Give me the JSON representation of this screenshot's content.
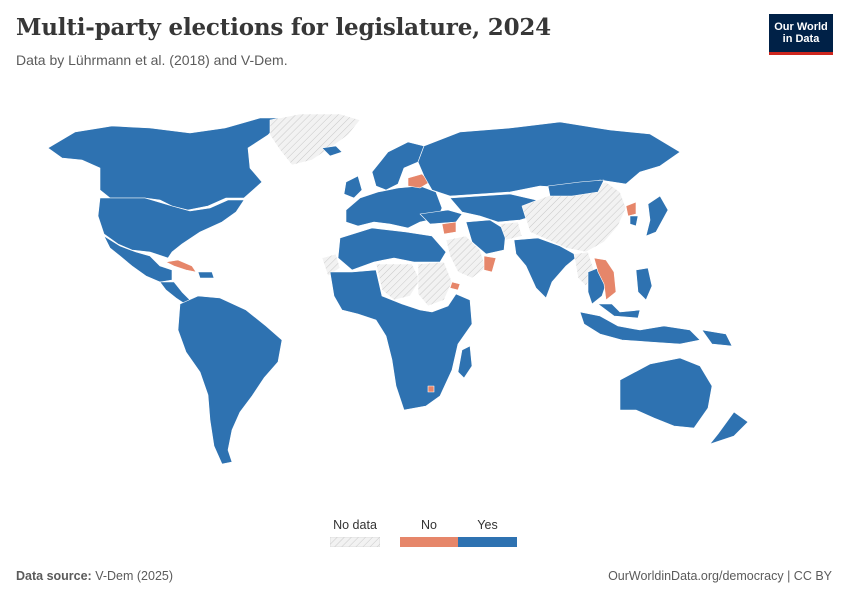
{
  "header": {
    "title": "Multi-party elections for legislature, 2024",
    "subtitle": "Data by Lührmann et al. (2018) and V-Dem."
  },
  "logo": {
    "line1": "Our World",
    "line2": "in Data"
  },
  "legend": {
    "items": [
      {
        "label": "No data",
        "color": "#eeeeee",
        "pattern": "hatched"
      },
      {
        "label": "No",
        "color": "#e6866a"
      },
      {
        "label": "Yes",
        "color": "#2e72b1"
      }
    ]
  },
  "map_data": {
    "year": 2024,
    "categories": {
      "yes": "#2e72b1",
      "no": "#e6866a",
      "no_data": "#eeeeee"
    },
    "no": [
      "Belarus",
      "Cuba",
      "Eritrea",
      "Laos",
      "North Korea",
      "Oman",
      "Syria",
      "Vietnam",
      "Eswatini"
    ],
    "no_data": [
      "Greenland",
      "Western Sahara",
      "Libya",
      "Sudan",
      "Saudi Arabia",
      "Afghanistan",
      "China",
      "Myanmar",
      "Yemen"
    ]
  },
  "footer": {
    "source_label": "Data source:",
    "source_value": "V-Dem (2025)",
    "link": "OurWorldinData.org/democracy | CC BY"
  }
}
